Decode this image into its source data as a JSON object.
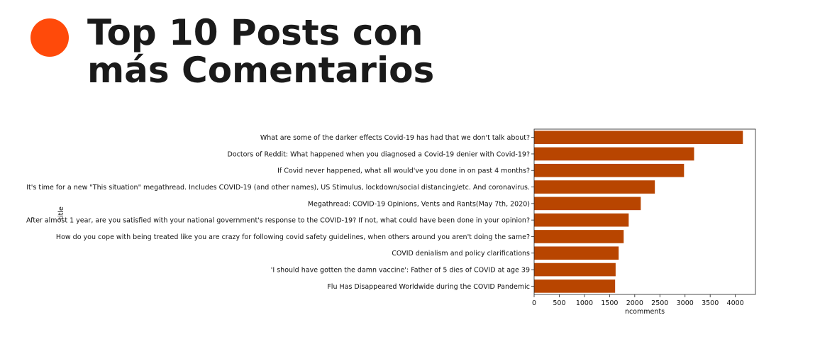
{
  "header": {
    "title_line1": "Top 10 Posts con",
    "title_line2": "más Comentarios",
    "dot_color": "#ff4a0a"
  },
  "chart_data": {
    "type": "bar",
    "orientation": "horizontal",
    "xlabel": "ncomments",
    "ylabel": "title",
    "xlim": [
      0,
      4400
    ],
    "xticks": [
      0,
      500,
      1000,
      1500,
      2000,
      2500,
      3000,
      3500,
      4000
    ],
    "bar_color": "#b84500",
    "grid": false,
    "categories": [
      "What are some of the darker effects Covid-19 has had that we don't talk about?",
      "Doctors of Reddit: What happened when you diagnosed a Covid-19 denier with Covid-19?",
      "If Covid never happened, what all would've you done in on past 4 months?",
      "It's time for a new \"This situation\" megathread. Includes COVID-19 (and other names), US Stimulus, lockdown/social distancing/etc. And coronavirus.",
      "Megathread: COVID-19 Opinions, Vents and Rants(May 7th, 2020)",
      "After almost 1 year, are you satisfied with your national government's response to the COVID-19? If not, what could have been done in your opinion?",
      "How do you cope with being treated like you are crazy for following covid safety guidelines, when others around you aren't doing the same?",
      "COVID denialism and policy clarifications",
      "'I should have gotten the damn vaccine': Father of 5 dies of COVID at age 39",
      "Flu Has Disappeared Worldwide during the COVID Pandemic"
    ],
    "values": [
      4150,
      3180,
      2980,
      2400,
      2120,
      1880,
      1780,
      1680,
      1620,
      1610
    ]
  }
}
